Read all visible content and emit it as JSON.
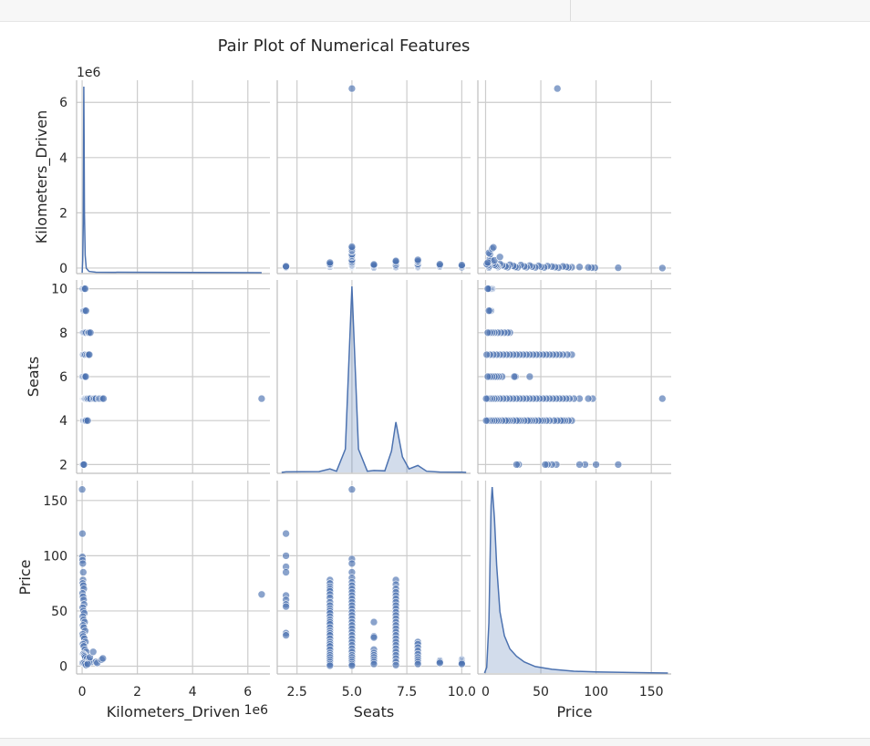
{
  "chart_data": {
    "type": "scatter",
    "title": "Pair Plot of Numerical Features",
    "variables": [
      "Kilometers_Driven",
      "Seats",
      "Price"
    ],
    "axes": {
      "Kilometers_Driven": {
        "label": "Kilometers_Driven",
        "range": [
          -200000,
          6800000
        ],
        "ticks": [
          0,
          2000000,
          4000000,
          6000000
        ],
        "tick_labels": [
          "0",
          "2",
          "4",
          "6"
        ],
        "offset_label": "1e6"
      },
      "Seats": {
        "label": "Seats",
        "range": [
          1.6,
          10.4
        ],
        "ticks": [
          2,
          4,
          6,
          8,
          10
        ],
        "tick_labels": [
          "2",
          "4",
          "6",
          "8",
          "10"
        ],
        "x_ticks": [
          2.5,
          5.0,
          7.5,
          10.0
        ],
        "x_tick_labels": [
          "2.5",
          "5.0",
          "7.5",
          "10.0"
        ]
      },
      "Price": {
        "label": "Price",
        "range": [
          -7,
          168
        ],
        "ticks": [
          0,
          50,
          100,
          150
        ],
        "tick_labels": [
          "0",
          "50",
          "100",
          "150"
        ]
      }
    },
    "grid": true,
    "point_color": "#4c72b0",
    "diag": {
      "Kilometers_Driven": [
        [
          0,
          0
        ],
        [
          20000,
          0.5
        ],
        [
          40000,
          2.0
        ],
        [
          50000,
          4.8
        ],
        [
          60000,
          7.5
        ],
        [
          70000,
          5.6
        ],
        [
          85000,
          2.4
        ],
        [
          110000,
          0.7
        ],
        [
          150000,
          0.18
        ],
        [
          250000,
          0.05
        ],
        [
          500000,
          0.02
        ],
        [
          6500000,
          0
        ]
      ],
      "Seats": [
        [
          1.8,
          0
        ],
        [
          2.0,
          0.015
        ],
        [
          3.5,
          0.02
        ],
        [
          4.0,
          0.09
        ],
        [
          4.3,
          0.03
        ],
        [
          4.7,
          0.6
        ],
        [
          5.0,
          4.8
        ],
        [
          5.3,
          0.6
        ],
        [
          5.7,
          0.03
        ],
        [
          6.0,
          0.05
        ],
        [
          6.5,
          0.04
        ],
        [
          6.8,
          0.55
        ],
        [
          7.0,
          1.3
        ],
        [
          7.3,
          0.4
        ],
        [
          7.6,
          0.09
        ],
        [
          8.0,
          0.18
        ],
        [
          8.4,
          0.03
        ],
        [
          9.0,
          0.01
        ],
        [
          10.0,
          0.005
        ],
        [
          10.2,
          0
        ]
      ],
      "Price": [
        [
          -1,
          0
        ],
        [
          1,
          0.03
        ],
        [
          3,
          0.27
        ],
        [
          5,
          0.9
        ],
        [
          6,
          1.0
        ],
        [
          8,
          0.83
        ],
        [
          10,
          0.58
        ],
        [
          13,
          0.33
        ],
        [
          17,
          0.2
        ],
        [
          22,
          0.13
        ],
        [
          28,
          0.09
        ],
        [
          35,
          0.06
        ],
        [
          45,
          0.035
        ],
        [
          60,
          0.02
        ],
        [
          80,
          0.01
        ],
        [
          100,
          0.006
        ],
        [
          130,
          0.003
        ],
        [
          165,
          0
        ]
      ]
    },
    "pairs": {
      "km_seats": [
        [
          27000,
          2
        ],
        [
          41000,
          2
        ],
        [
          65000,
          2
        ],
        [
          50000,
          4
        ],
        [
          90000,
          4
        ],
        [
          120000,
          4
        ],
        [
          150000,
          4
        ],
        [
          200000,
          4
        ],
        [
          30000,
          5
        ],
        [
          45000,
          5
        ],
        [
          60000,
          5
        ],
        [
          75000,
          5
        ],
        [
          90000,
          5
        ],
        [
          110000,
          5
        ],
        [
          140000,
          5
        ],
        [
          175000,
          5
        ],
        [
          200000,
          5
        ],
        [
          250000,
          5
        ],
        [
          300000,
          5
        ],
        [
          400000,
          5
        ],
        [
          450000,
          5
        ],
        [
          500000,
          5
        ],
        [
          600000,
          5
        ],
        [
          650000,
          5
        ],
        [
          720000,
          5
        ],
        [
          775000,
          5
        ],
        [
          6500000,
          5
        ],
        [
          25000,
          6
        ],
        [
          60000,
          6
        ],
        [
          100000,
          6
        ],
        [
          130000,
          6
        ],
        [
          40000,
          7
        ],
        [
          80000,
          7
        ],
        [
          120000,
          7
        ],
        [
          180000,
          7
        ],
        [
          230000,
          7
        ],
        [
          260000,
          7
        ],
        [
          40000,
          8
        ],
        [
          70000,
          8
        ],
        [
          110000,
          8
        ],
        [
          150000,
          8
        ],
        [
          220000,
          8
        ],
        [
          250000,
          8
        ],
        [
          300000,
          8
        ],
        [
          60000,
          9
        ],
        [
          100000,
          9
        ],
        [
          140000,
          9
        ],
        [
          30000,
          10
        ],
        [
          75000,
          10
        ],
        [
          110000,
          10
        ]
      ],
      "km_price": [
        [
          0,
          160
        ],
        [
          10000,
          120
        ],
        [
          12000,
          99
        ],
        [
          15000,
          96
        ],
        [
          25000,
          93
        ],
        [
          40000,
          85
        ],
        [
          30000,
          78
        ],
        [
          20000,
          75
        ],
        [
          45000,
          73
        ],
        [
          60000,
          70
        ],
        [
          15000,
          66
        ],
        [
          35000,
          63
        ],
        [
          55000,
          60
        ],
        [
          70000,
          56
        ],
        [
          20000,
          53
        ],
        [
          45000,
          50
        ],
        [
          80000,
          48
        ],
        [
          25000,
          45
        ],
        [
          50000,
          42
        ],
        [
          90000,
          40
        ],
        [
          30000,
          37
        ],
        [
          60000,
          35
        ],
        [
          110000,
          32
        ],
        [
          20000,
          29
        ],
        [
          40000,
          27
        ],
        [
          80000,
          25
        ],
        [
          120000,
          22
        ],
        [
          30000,
          20
        ],
        [
          60000,
          18
        ],
        [
          100000,
          15
        ],
        [
          150000,
          13
        ],
        [
          40000,
          11
        ],
        [
          70000,
          10
        ],
        [
          90000,
          9
        ],
        [
          120000,
          8
        ],
        [
          180000,
          7
        ],
        [
          250000,
          6
        ],
        [
          300000,
          5
        ],
        [
          350000,
          4
        ],
        [
          20000,
          3
        ],
        [
          60000,
          3
        ],
        [
          100000,
          2
        ],
        [
          150000,
          1
        ],
        [
          200000,
          2
        ],
        [
          280000,
          8
        ],
        [
          400000,
          13
        ],
        [
          500000,
          4
        ],
        [
          550000,
          3
        ],
        [
          700000,
          6
        ],
        [
          750000,
          7
        ],
        [
          6500000,
          65
        ]
      ],
      "seats_price": [
        [
          2,
          120
        ],
        [
          2,
          100
        ],
        [
          2,
          90
        ],
        [
          2,
          85
        ],
        [
          2,
          64
        ],
        [
          2,
          60
        ],
        [
          2,
          56
        ],
        [
          2,
          54
        ],
        [
          2,
          30
        ],
        [
          2,
          28
        ],
        [
          4,
          78
        ],
        [
          4,
          75
        ],
        [
          4,
          72
        ],
        [
          4,
          70
        ],
        [
          4,
          68
        ],
        [
          4,
          65
        ],
        [
          4,
          62
        ],
        [
          4,
          58
        ],
        [
          4,
          55
        ],
        [
          4,
          52
        ],
        [
          4,
          50
        ],
        [
          4,
          48
        ],
        [
          4,
          45
        ],
        [
          4,
          42
        ],
        [
          4,
          40
        ],
        [
          4,
          38
        ],
        [
          4,
          35
        ],
        [
          4,
          32
        ],
        [
          4,
          30
        ],
        [
          4,
          28
        ],
        [
          4,
          25
        ],
        [
          4,
          22
        ],
        [
          4,
          20
        ],
        [
          4,
          18
        ],
        [
          4,
          15
        ],
        [
          4,
          12
        ],
        [
          4,
          10
        ],
        [
          4,
          8
        ],
        [
          4,
          6
        ],
        [
          4,
          4
        ],
        [
          4,
          2
        ],
        [
          4,
          0.5
        ],
        [
          5,
          160
        ],
        [
          5,
          97
        ],
        [
          5,
          93
        ],
        [
          5,
          85
        ],
        [
          5,
          80
        ],
        [
          5,
          76
        ],
        [
          5,
          73
        ],
        [
          5,
          70
        ],
        [
          5,
          67
        ],
        [
          5,
          64
        ],
        [
          5,
          61
        ],
        [
          5,
          58
        ],
        [
          5,
          55
        ],
        [
          5,
          52
        ],
        [
          5,
          49
        ],
        [
          5,
          46
        ],
        [
          5,
          43
        ],
        [
          5,
          40
        ],
        [
          5,
          37
        ],
        [
          5,
          34
        ],
        [
          5,
          31
        ],
        [
          5,
          28
        ],
        [
          5,
          25
        ],
        [
          5,
          22
        ],
        [
          5,
          19
        ],
        [
          5,
          16
        ],
        [
          5,
          13
        ],
        [
          5,
          10
        ],
        [
          5,
          8
        ],
        [
          5,
          6
        ],
        [
          5,
          4
        ],
        [
          5,
          2
        ],
        [
          5,
          0.5
        ],
        [
          6,
          40
        ],
        [
          6,
          27
        ],
        [
          6,
          26
        ],
        [
          6,
          15
        ],
        [
          6,
          12
        ],
        [
          6,
          10
        ],
        [
          6,
          8
        ],
        [
          6,
          6
        ],
        [
          6,
          4
        ],
        [
          6,
          2
        ],
        [
          7,
          78
        ],
        [
          7,
          74
        ],
        [
          7,
          70
        ],
        [
          7,
          67
        ],
        [
          7,
          64
        ],
        [
          7,
          61
        ],
        [
          7,
          58
        ],
        [
          7,
          55
        ],
        [
          7,
          52
        ],
        [
          7,
          49
        ],
        [
          7,
          46
        ],
        [
          7,
          43
        ],
        [
          7,
          40
        ],
        [
          7,
          37
        ],
        [
          7,
          34
        ],
        [
          7,
          31
        ],
        [
          7,
          28
        ],
        [
          7,
          25
        ],
        [
          7,
          22
        ],
        [
          7,
          19
        ],
        [
          7,
          16
        ],
        [
          7,
          13
        ],
        [
          7,
          10
        ],
        [
          7,
          7
        ],
        [
          7,
          4
        ],
        [
          7,
          1
        ],
        [
          8,
          22
        ],
        [
          8,
          20
        ],
        [
          8,
          17
        ],
        [
          8,
          14
        ],
        [
          8,
          11
        ],
        [
          8,
          8
        ],
        [
          8,
          6
        ],
        [
          8,
          4
        ],
        [
          8,
          2
        ],
        [
          9,
          5
        ],
        [
          9,
          4
        ],
        [
          9,
          3
        ],
        [
          10,
          6
        ],
        [
          10,
          5
        ],
        [
          10,
          4
        ],
        [
          10,
          3
        ],
        [
          10,
          2
        ]
      ]
    }
  }
}
